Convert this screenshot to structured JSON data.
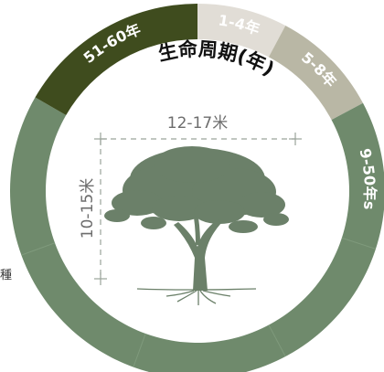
{
  "title": "生命周期(年)",
  "segments": [
    {
      "label": "1-4年",
      "start": 0,
      "end": 28,
      "color": "#e1ddd6"
    },
    {
      "label": "5-8年",
      "start": 28,
      "end": 62,
      "color": "#b9b7a5"
    },
    {
      "label": "9-50年s",
      "start": 62,
      "end": 300,
      "color": "#6f8a6c"
    },
    {
      "label": "51-60年",
      "start": 300,
      "end": 360,
      "color": "#3f4c1e"
    }
  ],
  "dimensions": {
    "width_label": "12-17米",
    "height_label": "10-15米"
  },
  "side_note": "種",
  "colors": {
    "tree": "#6b8069",
    "dim_line": "#9aa39a",
    "dim_text": "#6d6d6d",
    "label_text": "#ffffff"
  }
}
